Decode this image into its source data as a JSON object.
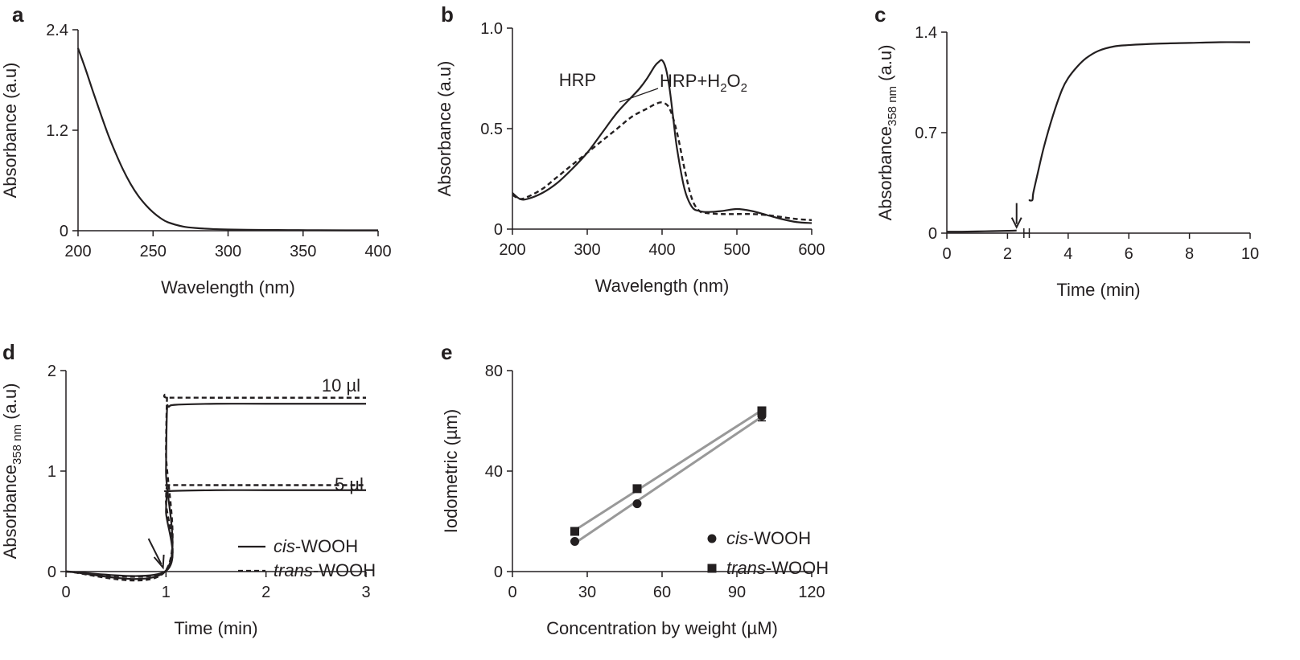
{
  "chart_data": [
    {
      "panel": "a",
      "type": "line",
      "xlabel": "Wavelength (nm)",
      "ylabel": "Absorbance (a.u)",
      "xlim": [
        200,
        400
      ],
      "ylim": [
        0,
        2.4
      ],
      "xticks": [
        200,
        250,
        300,
        350,
        400
      ],
      "yticks": [
        0,
        1.2,
        2.4
      ],
      "ytick_labels": [
        "0",
        "1.2",
        "2.4"
      ],
      "series": [
        {
          "style": "solid",
          "x": [
            200,
            205,
            210,
            215,
            220,
            225,
            230,
            235,
            240,
            245,
            250,
            255,
            260,
            270,
            280,
            290,
            300,
            320,
            340,
            360,
            380,
            400
          ],
          "y": [
            2.18,
            1.93,
            1.66,
            1.4,
            1.15,
            0.93,
            0.73,
            0.56,
            0.42,
            0.31,
            0.22,
            0.15,
            0.1,
            0.05,
            0.03,
            0.02,
            0.015,
            0.01,
            0.008,
            0.006,
            0.005,
            0.005
          ]
        }
      ]
    },
    {
      "panel": "b",
      "type": "line",
      "xlabel": "Wavelength (nm)",
      "ylabel": "Absorbance (a.u)",
      "xlim": [
        200,
        600
      ],
      "ylim": [
        0,
        1.0
      ],
      "xticks": [
        200,
        300,
        400,
        500,
        600
      ],
      "yticks": [
        0,
        0.5,
        1.0
      ],
      "ytick_labels": [
        "0",
        "0.5",
        "1.0"
      ],
      "series": [
        {
          "name": "HRP",
          "style": "solid",
          "x": [
            200,
            210,
            220,
            240,
            260,
            280,
            300,
            320,
            340,
            360,
            370,
            380,
            390,
            395,
            400,
            405,
            410,
            415,
            420,
            430,
            440,
            450,
            460,
            480,
            500,
            520,
            540,
            560,
            580,
            600
          ],
          "y": [
            0.18,
            0.15,
            0.15,
            0.18,
            0.23,
            0.3,
            0.38,
            0.48,
            0.58,
            0.66,
            0.7,
            0.75,
            0.81,
            0.83,
            0.84,
            0.8,
            0.7,
            0.55,
            0.4,
            0.2,
            0.11,
            0.09,
            0.085,
            0.09,
            0.1,
            0.09,
            0.07,
            0.05,
            0.035,
            0.03
          ]
        },
        {
          "name": "HRP+H2O2",
          "style": "dashed",
          "x": [
            200,
            210,
            220,
            240,
            260,
            280,
            300,
            320,
            340,
            360,
            380,
            390,
            400,
            410,
            420,
            430,
            440,
            450,
            460,
            480,
            500,
            520,
            540,
            560,
            580,
            600
          ],
          "y": [
            0.17,
            0.15,
            0.16,
            0.2,
            0.26,
            0.32,
            0.38,
            0.44,
            0.5,
            0.56,
            0.6,
            0.62,
            0.63,
            0.6,
            0.48,
            0.3,
            0.15,
            0.09,
            0.08,
            0.075,
            0.075,
            0.075,
            0.07,
            0.06,
            0.05,
            0.045
          ]
        }
      ],
      "annotations": [
        {
          "text": "HRP"
        },
        {
          "text": "HRP+H",
          "sub": "2",
          "text2": "O",
          "sub2": "2"
        }
      ]
    },
    {
      "panel": "c",
      "type": "line",
      "xlabel": "Time (min)",
      "ylabel": "Absorbance",
      "ylabel_sub": "358 nm",
      "ylabel_suffix": " (a.u)",
      "xlim": [
        0,
        10
      ],
      "ylim": [
        0,
        1.4
      ],
      "xticks": [
        0,
        2,
        4,
        6,
        8,
        10
      ],
      "yticks": [
        0,
        0.7,
        1.4
      ],
      "ytick_labels": [
        "0",
        "0.7",
        "1.4"
      ],
      "axis_break_between": [
        2.4,
        2.7
      ],
      "series": [
        {
          "style": "solid",
          "x": [
            0,
            0.5,
            1,
            1.5,
            2,
            2.3
          ],
          "y": [
            0.01,
            0.01,
            0.012,
            0.014,
            0.016,
            0.018
          ]
        },
        {
          "style": "solid",
          "x": [
            2.7,
            2.82,
            2.85,
            3.0,
            3.2,
            3.5,
            3.8,
            4.0,
            4.3,
            4.6,
            5.0,
            5.5,
            6.0,
            7.0,
            8.0,
            9.0,
            10.0
          ],
          "y": [
            0.23,
            0.23,
            0.28,
            0.42,
            0.6,
            0.82,
            1.0,
            1.08,
            1.16,
            1.22,
            1.27,
            1.3,
            1.31,
            1.32,
            1.325,
            1.33,
            1.33
          ]
        }
      ],
      "arrow_at_x": 2.3
    },
    {
      "panel": "d",
      "type": "line",
      "xlabel": "Time (min)",
      "ylabel": "Absorbance",
      "ylabel_sub": "358 nm",
      "ylabel_suffix": " (a.u)",
      "xlim": [
        0,
        3
      ],
      "ylim": [
        0,
        2
      ],
      "xticks": [
        0,
        1,
        2,
        3
      ],
      "yticks": [
        0,
        1,
        2
      ],
      "ytick_labels": [
        "0",
        "1",
        "2"
      ],
      "series": [
        {
          "name": "cis-WOOH 10 µl",
          "style": "solid",
          "x": [
            0,
            0.99,
            1.0,
            1.01,
            1.03,
            1.1,
            1.5,
            2.0,
            3.0
          ],
          "y": [
            0.0,
            0.0,
            1.0,
            1.6,
            1.64,
            1.66,
            1.67,
            1.67,
            1.67
          ]
        },
        {
          "name": "trans-WOOH 10 µl",
          "style": "dashed",
          "x": [
            0,
            0.99,
            1.0,
            1.01,
            1.02,
            1.5,
            2.0,
            3.0
          ],
          "y": [
            0.0,
            0.0,
            1.2,
            1.72,
            1.73,
            1.73,
            1.73,
            1.73
          ]
        },
        {
          "name": "cis-WOOH 5 µl",
          "style": "solid",
          "x": [
            0,
            0.99,
            1.0,
            1.01,
            1.03,
            1.5,
            2.0,
            3.0
          ],
          "y": [
            0.0,
            0.0,
            0.6,
            0.78,
            0.8,
            0.81,
            0.81,
            0.81
          ]
        },
        {
          "name": "trans-WOOH 5 µl",
          "style": "dashed",
          "x": [
            0,
            0.99,
            1.0,
            1.01,
            1.02,
            1.5,
            2.0,
            3.0
          ],
          "y": [
            0.0,
            0.0,
            0.7,
            0.85,
            0.86,
            0.86,
            0.86,
            0.86
          ]
        }
      ],
      "annotations": [
        {
          "text": "10 µl"
        },
        {
          "text": "5 µl"
        }
      ],
      "legend": [
        {
          "italic": "cis",
          "rest": "-WOOH",
          "style": "solid"
        },
        {
          "italic": "trans",
          "rest": "-WOOH",
          "style": "dashed"
        }
      ],
      "arrow_at_x": 0.97
    },
    {
      "panel": "e",
      "type": "scatter",
      "xlabel": "Concentration by weight (µM)",
      "ylabel": "Iodometric (µm)",
      "xlim": [
        0,
        120
      ],
      "ylim": [
        0,
        80
      ],
      "xticks": [
        0,
        30,
        60,
        90,
        120
      ],
      "yticks": [
        0,
        40,
        80
      ],
      "ytick_labels": [
        "0",
        "40",
        "80"
      ],
      "fit_color": "#999999",
      "series": [
        {
          "name": "cis-WOOH",
          "marker": "circle",
          "x": [
            25,
            50,
            100
          ],
          "y": [
            12,
            27,
            62
          ]
        },
        {
          "name": "trans-WOOH",
          "marker": "square",
          "x": [
            25,
            50,
            100
          ],
          "y": [
            16,
            33,
            64
          ]
        }
      ],
      "legend": [
        {
          "italic": "cis",
          "rest": "-WOOH",
          "marker": "circle"
        },
        {
          "italic": "trans",
          "rest": "-WOOH",
          "marker": "square"
        }
      ]
    }
  ],
  "colors": {
    "ink": "#231f20",
    "fit_line": "#999999"
  }
}
